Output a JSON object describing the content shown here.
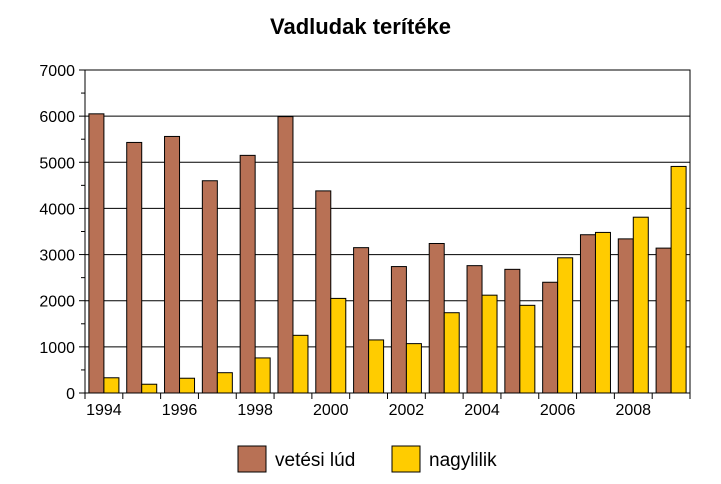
{
  "chart_data": {
    "type": "bar",
    "title": "Vadludak terítéke",
    "categories": [
      "1994",
      "1995",
      "1996",
      "1997",
      "1998",
      "1999",
      "2000",
      "2001",
      "2002",
      "2003",
      "2004",
      "2005",
      "2006",
      "2007",
      "2008",
      "2009"
    ],
    "x_tick_labels": [
      "1994",
      "1996",
      "1998",
      "2000",
      "2002",
      "2004",
      "2006",
      "2008"
    ],
    "series": [
      {
        "name": "vetési lúd",
        "color": "#b87155",
        "values": [
          6050,
          5430,
          5560,
          4600,
          5150,
          5990,
          4380,
          3150,
          2740,
          3240,
          2760,
          2680,
          2400,
          3430,
          3340,
          3140
        ]
      },
      {
        "name": "nagylilik",
        "color": "#ffcc00",
        "values": [
          330,
          190,
          320,
          440,
          760,
          1250,
          2050,
          1150,
          1070,
          1740,
          2120,
          1900,
          2930,
          3480,
          3810,
          4910
        ]
      }
    ],
    "ylim": [
      0,
      7000
    ],
    "y_ticks": [
      0,
      1000,
      2000,
      3000,
      4000,
      5000,
      6000,
      7000
    ],
    "grid": true,
    "legend_position": "bottom"
  }
}
